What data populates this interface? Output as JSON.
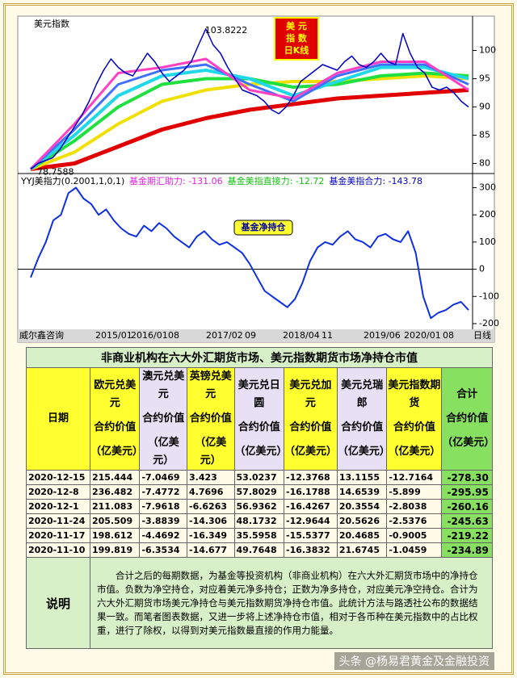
{
  "chart_data": [
    {
      "type": "line",
      "title": "美元指数",
      "badge": [
        "美 元",
        "指 数",
        "日K线"
      ],
      "annotations": [
        {
          "text": "103.8222",
          "x": 23,
          "y": 103.82
        },
        {
          "text": "78.7588",
          "x": 0,
          "y": 79
        }
      ],
      "ylim": [
        78.5,
        105.5
      ],
      "yticks": [
        80,
        85,
        90,
        95,
        100
      ],
      "series": [
        {
          "color": "#e00000",
          "width": 5,
          "values": [
            79,
            80,
            83,
            86,
            88,
            89.5,
            90.5,
            91.5,
            92,
            92.5,
            93
          ]
        },
        {
          "color": "#f0e000",
          "width": 4,
          "values": [
            79,
            82,
            87,
            91,
            93,
            94,
            94.5,
            94.5,
            95,
            95.5,
            95
          ]
        },
        {
          "color": "#20e040",
          "width": 4,
          "values": [
            79,
            84,
            90,
            94,
            95,
            95,
            93.5,
            94,
            95.5,
            96,
            95.5
          ]
        },
        {
          "color": "#20d8e8",
          "width": 4,
          "values": [
            79,
            85,
            92,
            95.5,
            96.5,
            95,
            92,
            94.5,
            97,
            97,
            95
          ]
        },
        {
          "color": "#4070ff",
          "width": 3,
          "values": [
            79,
            86,
            94,
            96.5,
            97.5,
            94,
            91,
            95.5,
            97.5,
            97.5,
            94
          ]
        },
        {
          "color": "#ff40c0",
          "width": 3,
          "values": [
            79,
            87,
            96,
            97,
            98.5,
            93,
            91.5,
            96,
            98,
            98,
            93
          ]
        },
        {
          "color": "#0000c0",
          "width": 1.5,
          "values": [
            79,
            80,
            80.5,
            81,
            82.5,
            84.5,
            86.5,
            88.5,
            91,
            94,
            96.5,
            98.5,
            97,
            96,
            95.5,
            97.5,
            99.5,
            98,
            96,
            94.5,
            95.5,
            96.5,
            98,
            101,
            103.82,
            101,
            99.5,
            97,
            95,
            93,
            92.5,
            92,
            91,
            89.5,
            88.8,
            90,
            92,
            94.5,
            95.5,
            96.5,
            97.5,
            97,
            96.5,
            98,
            99,
            97.5,
            97,
            98,
            99.5,
            98,
            97.5,
            103,
            99.5,
            97,
            96,
            93.5,
            93,
            93.5,
            92.5,
            91,
            90
          ]
        }
      ]
    },
    {
      "type": "line",
      "title": "YYJ美指力(0.2001,1,0,1)",
      "badge": [
        "基金净持仓"
      ],
      "legend": [
        {
          "text": "基金期汇助力: -131.06",
          "color": "#e020e0"
        },
        {
          "text": "基金美指直接力: -12.72",
          "color": "#10c010"
        },
        {
          "text": "基金美指合力: -143.78",
          "color": "#0000c0"
        }
      ],
      "ylim": [
        -215,
        340
      ],
      "yticks": [
        -200,
        -100,
        0,
        100,
        200,
        300
      ],
      "series": [
        {
          "color": "#1030e0",
          "width": 2,
          "values": [
            -30,
            40,
            100,
            180,
            200,
            280,
            300,
            260,
            240,
            200,
            220,
            180,
            150,
            130,
            120,
            160,
            140,
            170,
            150,
            120,
            100,
            80,
            120,
            140,
            110,
            90,
            100,
            80,
            60,
            20,
            -30,
            -80,
            -100,
            -120,
            -140,
            -110,
            -50,
            30,
            80,
            100,
            90,
            120,
            140,
            110,
            100,
            80,
            120,
            130,
            110,
            100,
            140,
            60,
            -100,
            -180,
            -160,
            -150,
            -130,
            -120,
            -150
          ]
        }
      ]
    }
  ],
  "x_axis": {
    "source": "威尔鑫咨询",
    "labels": [
      "2015/01",
      "2016/01",
      "08",
      "2017/02",
      "09",
      "2018/04",
      "11",
      "2019/06",
      "2020/01",
      "08"
    ],
    "period": "日线"
  },
  "table": {
    "title": "非商业机构在六大外汇期货市场、美元指数期货市场净持仓市值",
    "date_header": "日期",
    "columns": [
      {
        "name": "欧元兑美元",
        "sub": "合约价值",
        "unit": "（亿美元）"
      },
      {
        "name": "澳元兑美元",
        "sub": "合约价值",
        "unit": "（亿美元）"
      },
      {
        "name": "英镑兑美元",
        "sub": "合约价值",
        "unit": "（亿美元）"
      },
      {
        "name": "美元兑日圆",
        "sub": "合约价值",
        "unit": "（亿美元）"
      },
      {
        "name": "美元兑加元",
        "sub": "合约价值",
        "unit": "（亿美元）"
      },
      {
        "name": "美元兑瑞郎",
        "sub": "合约价值",
        "unit": "（亿美元）"
      },
      {
        "name": "美元指数期货",
        "sub": "合约价值",
        "unit": "（亿美元）"
      },
      {
        "name": "合计",
        "sub": "合约价值",
        "unit": "（亿美元）"
      }
    ],
    "rows": [
      [
        "2020-12-15",
        "215.444",
        "-7.0469",
        "3.423",
        "53.0237",
        "-12.3768",
        "13.1155",
        "-12.7164",
        "-278.30"
      ],
      [
        "2020-12-8",
        "236.482",
        "-7.4772",
        "4.7696",
        "57.8029",
        "-16.1788",
        "14.6539",
        "-5.899",
        "-295.95"
      ],
      [
        "2020-12-1",
        "211.083",
        "-7.9618",
        "-6.6263",
        "56.9362",
        "-16.4267",
        "20.3554",
        "-2.8038",
        "-260.16"
      ],
      [
        "2020-11-24",
        "205.509",
        "-3.8839",
        "-14.306",
        "48.1732",
        "-12.9644",
        "20.5626",
        "-2.5376",
        "-245.63"
      ],
      [
        "2020-11-17",
        "198.612",
        "-4.4692",
        "-16.349",
        "35.5958",
        "-15.5377",
        "20.4685",
        "-0.9005",
        "-219.22"
      ],
      [
        "2020-11-10",
        "199.819",
        "-6.3534",
        "-14.677",
        "49.7648",
        "-16.3832",
        "21.6745",
        "-1.0459",
        "-234.89"
      ]
    ],
    "note_label": "说明",
    "note": "合计之后的每期数据，为基金等投资机构（非商业机构）在六大外汇期货市场中的净持仓市值。负数为净空持仓，对应着美元净多持仓；正数为净多持仓，对应美元净空持仓。合计为六大外汇期货市场美元净持仓与美元指数期货净持仓市值。此统计方法与路透社公布的数据结果一致。而笔者图表数据，又进一步将上述净持仓市值，相对于各币种在美元指数中的占比权重，进行了除权，以得到对美元指数最直接的作用力能量。"
  },
  "watermark": "头条 @杨易君黄金及金融投资"
}
